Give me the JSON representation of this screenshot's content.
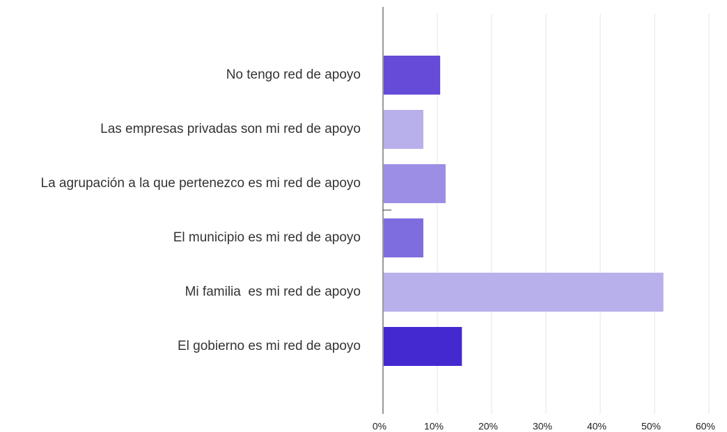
{
  "chart_data": {
    "type": "bar",
    "orientation": "horizontal",
    "categories": [
      "No tengo red de apoyo",
      "Las empresas privadas son mi red de apoyo",
      "La agrupación a la que pertenezco es mi red de apoyo",
      "El municipio es mi red de apoyo",
      "Mi familia  es mi red de apoyo",
      "El gobierno es mi red de apoyo"
    ],
    "values": [
      10.4,
      7.3,
      11.4,
      7.3,
      51.5,
      14.4
    ],
    "colors": [
      "#654bd8",
      "#b8b0ea",
      "#9d8ee5",
      "#7e6ddf",
      "#b8b0ea",
      "#4429d0"
    ],
    "xlim": [
      0,
      60
    ],
    "xticks": [
      {
        "value": 0,
        "label": "0%"
      },
      {
        "value": 10,
        "label": "10%"
      },
      {
        "value": 20,
        "label": "20%"
      },
      {
        "value": 30,
        "label": "30%"
      },
      {
        "value": 40,
        "label": "40%"
      },
      {
        "value": 50,
        "label": "50%"
      },
      {
        "value": 60,
        "label": "60%"
      }
    ],
    "grid": true
  }
}
